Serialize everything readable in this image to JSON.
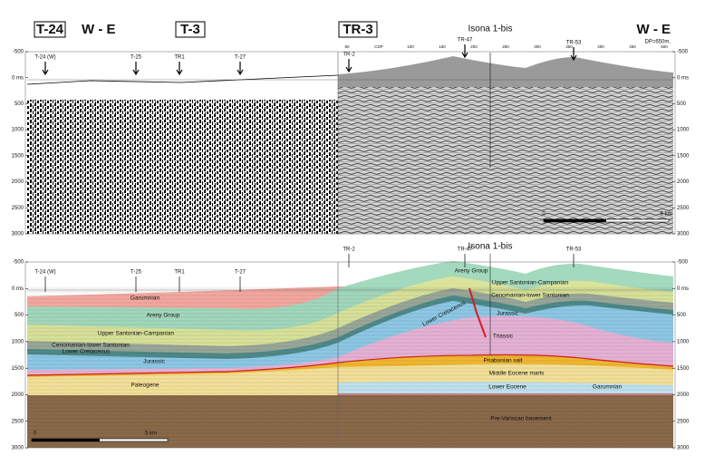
{
  "top_panel": {
    "sections": [
      "T-24",
      "T-3",
      "TR-3"
    ],
    "direction_left": "W - E",
    "direction_right": "W - E",
    "datum": "DP=650m.",
    "well": "Isona 1-bis",
    "wells": [
      "T-24 (W)",
      "T-25",
      "TR1",
      "T-27",
      "TR-2",
      "TR-47",
      "TR-53"
    ],
    "cdp": [
      "50",
      "CDP",
      "100",
      "150",
      "200",
      "250",
      "300",
      "350",
      "400",
      "450",
      "500"
    ],
    "depth_ticks": [
      "-500",
      "0 ms",
      "500",
      "1000",
      "1500",
      "2000",
      "2500",
      "3000"
    ],
    "scale": [
      "0",
      "5 km"
    ]
  },
  "bottom_panel": {
    "well": "Isona 1-bis",
    "wells": [
      "T-24 (W)",
      "T-25",
      "TR1",
      "T-27",
      "TR-2",
      "TR-47",
      "TR-53"
    ],
    "depth_ticks": [
      "-500",
      "0 ms",
      "500",
      "1000",
      "1500",
      "2000",
      "2500",
      "3000"
    ],
    "units": [
      "Garumnian",
      "Areny Group",
      "Upper Santonian-Campanian",
      "Cenomanian-lower Santonian",
      "Lower Cretaceous",
      "Jurassic",
      "Paleogene",
      "Areny Group",
      "Upper Santonian-Campanian",
      "Cenomanian-lower Santonian",
      "Lower Cretaceous",
      "Jurassic",
      "Triassic",
      "Priabonian salt",
      "Middle Eocene marls",
      "Lower Eocene",
      "Garumnian",
      "Pre-Variscan basement"
    ],
    "scale": [
      "0",
      "5 km"
    ]
  }
}
